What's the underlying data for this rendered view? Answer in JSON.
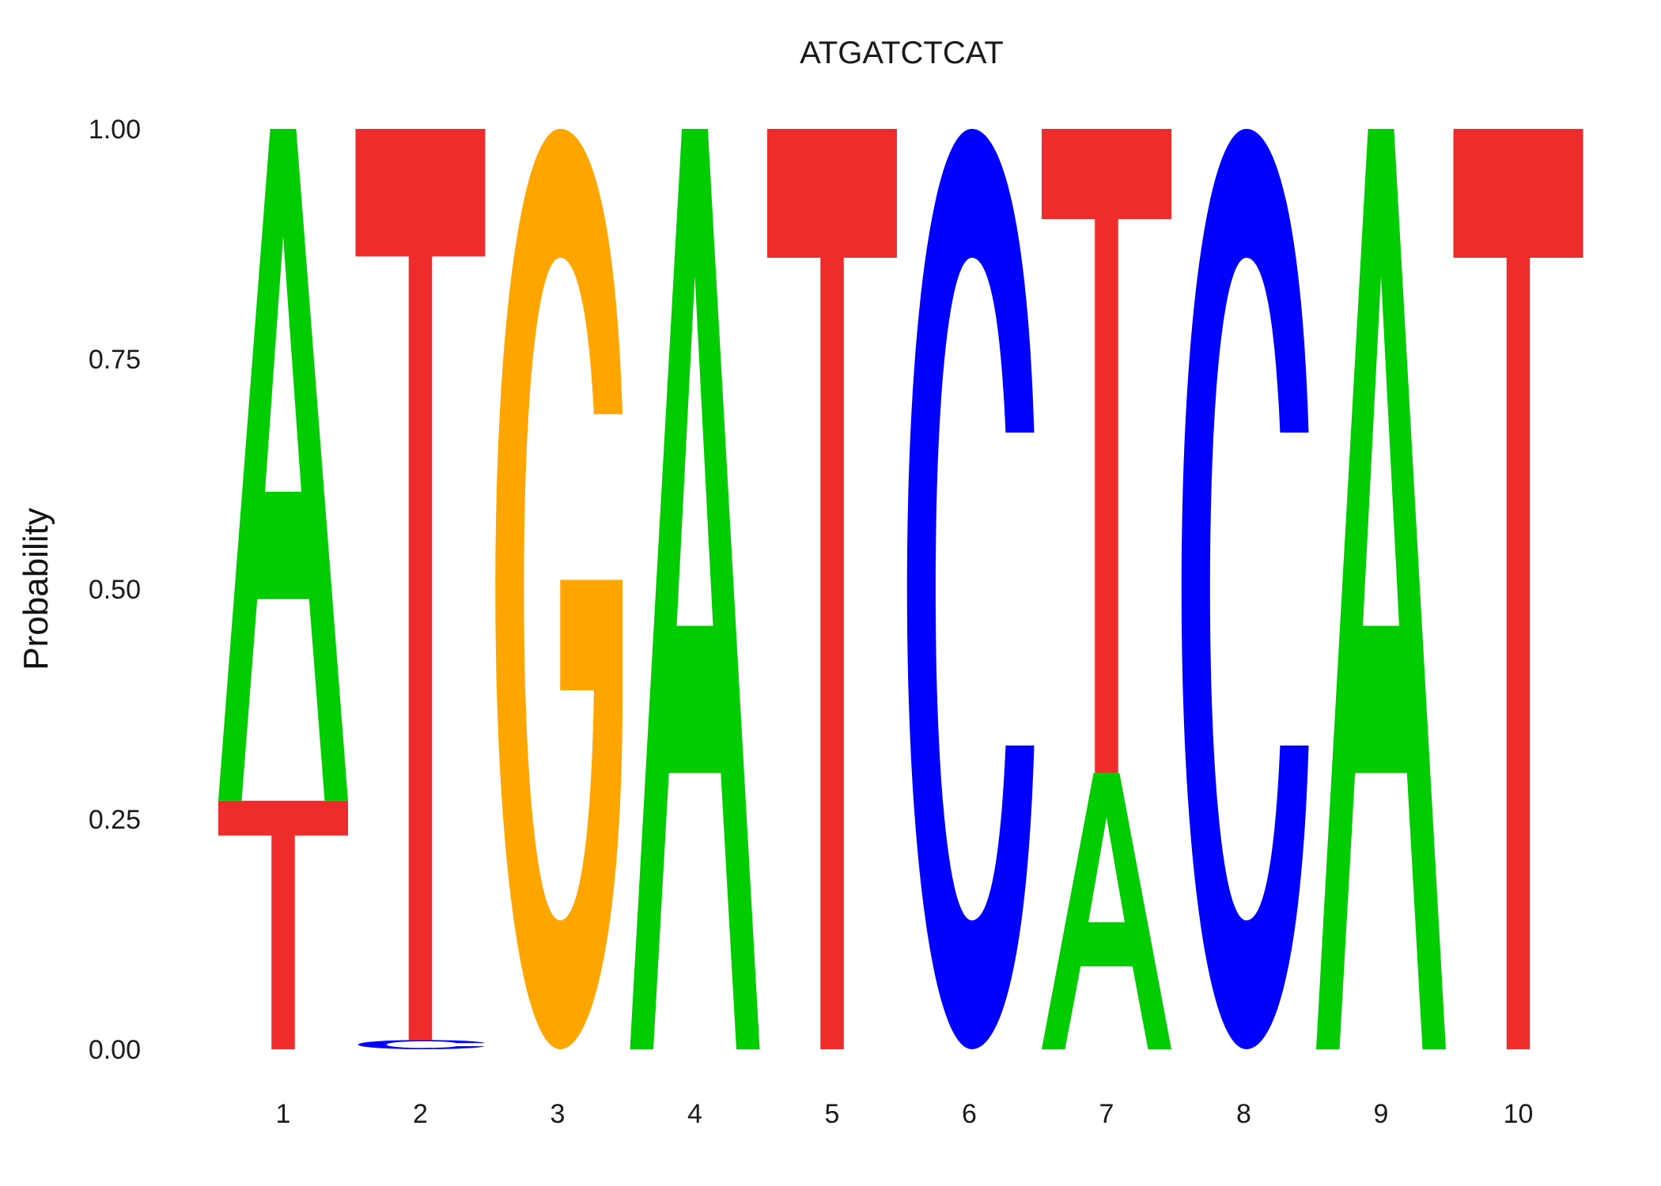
{
  "chart_data": {
    "type": "sequence-logo",
    "title": "ATGATCTCAT",
    "ylabel": "Probability",
    "xlabel": "",
    "ylim": [
      0,
      1
    ],
    "y_ticks": [
      "0.00",
      "0.25",
      "0.50",
      "0.75",
      "1.00"
    ],
    "x": [
      "1",
      "2",
      "3",
      "4",
      "5",
      "6",
      "7",
      "8",
      "9",
      "10"
    ],
    "colors": {
      "A": "#00cc00",
      "C": "#0000ff",
      "G": "#ffa500",
      "T": "#ee2c2c"
    },
    "positions": [
      {
        "pos": "1",
        "letters": [
          {
            "base": "T",
            "prob": 0.27
          },
          {
            "base": "A",
            "prob": 0.73
          }
        ]
      },
      {
        "pos": "2",
        "letters": [
          {
            "base": "C",
            "prob": 0.01
          },
          {
            "base": "T",
            "prob": 0.99
          }
        ]
      },
      {
        "pos": "3",
        "letters": [
          {
            "base": "G",
            "prob": 1.0
          }
        ]
      },
      {
        "pos": "4",
        "letters": [
          {
            "base": "A",
            "prob": 1.0
          }
        ]
      },
      {
        "pos": "5",
        "letters": [
          {
            "base": "T",
            "prob": 1.0
          }
        ]
      },
      {
        "pos": "6",
        "letters": [
          {
            "base": "C",
            "prob": 1.0
          }
        ]
      },
      {
        "pos": "7",
        "letters": [
          {
            "base": "A",
            "prob": 0.3
          },
          {
            "base": "T",
            "prob": 0.7
          }
        ]
      },
      {
        "pos": "8",
        "letters": [
          {
            "base": "C",
            "prob": 1.0
          }
        ]
      },
      {
        "pos": "9",
        "letters": [
          {
            "base": "A",
            "prob": 1.0
          }
        ]
      },
      {
        "pos": "10",
        "letters": [
          {
            "base": "T",
            "prob": 1.0
          }
        ]
      }
    ]
  }
}
